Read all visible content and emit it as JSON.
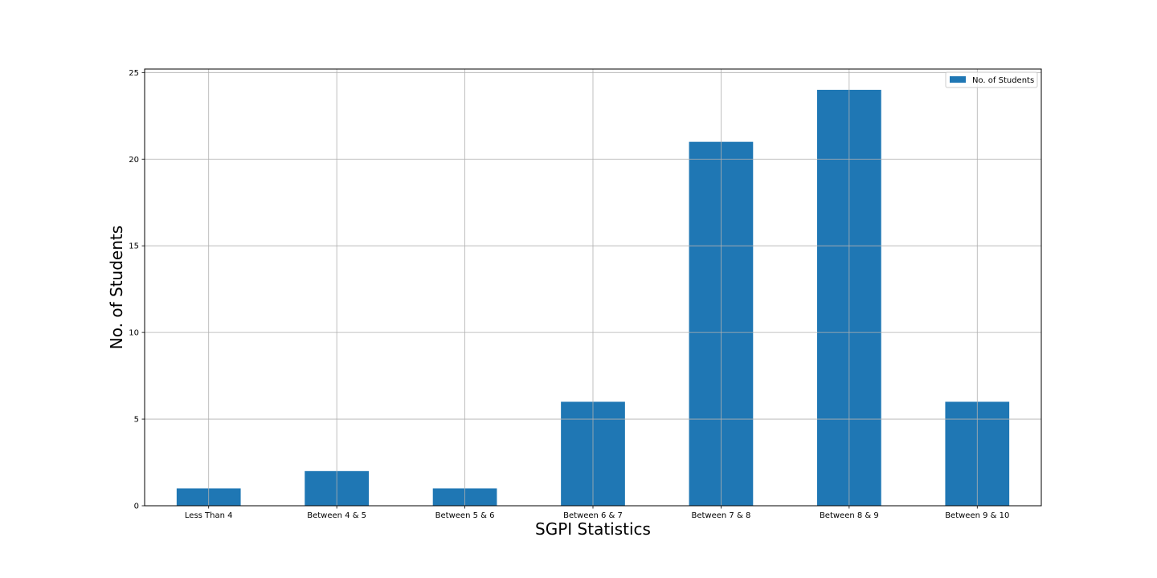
{
  "chart_data": {
    "type": "bar",
    "title": "",
    "xlabel": "SGPI Statistics",
    "ylabel": "No. of Students",
    "categories": [
      "Less Than 4",
      "Between 4 & 5",
      "Between 5 & 6",
      "Between 6 & 7",
      "Between 7 & 8",
      "Between 8 & 9",
      "Between 9 & 10"
    ],
    "series": [
      {
        "name": "No. of Students",
        "values": [
          1,
          2,
          1,
          6,
          21,
          24,
          6
        ],
        "color": "#1f77b4"
      }
    ],
    "ylim": [
      0,
      25.2
    ],
    "yticks": [
      0,
      5,
      10,
      15,
      20,
      25
    ],
    "grid": true,
    "legend_position": "top-right"
  }
}
